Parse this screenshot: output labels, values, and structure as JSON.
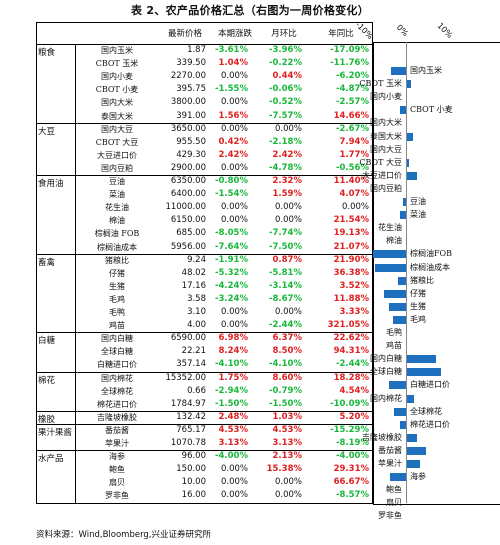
{
  "title": "表 2、农产品价格汇总（右图为一周价格变化）",
  "headers": [
    "最新价格",
    "本期涨跌",
    "月环比",
    "年同比"
  ],
  "chart_axis": [
    "-10%",
    "0%",
    "10%"
  ],
  "colors": {
    "up": "#e02020",
    "down": "#18b83a",
    "bar": "#1f6fbf"
  },
  "groups": [
    {
      "category": "粮食",
      "rows": [
        {
          "name": "国内玉米",
          "price": "1.87",
          "wk": "-3.61%",
          "mom": "-3.96%",
          "yoy": "-17.09%",
          "chart": "国内玉米",
          "v": -3.61
        },
        {
          "name": "CBOT 玉米",
          "price": "339.50",
          "wk": "1.04%",
          "mom": "-0.22%",
          "yoy": "-11.76%",
          "chart": "CBOT 玉米",
          "v": 1.04
        },
        {
          "name": "国内小麦",
          "price": "2270.00",
          "wk": "0.00%",
          "mom": "0.44%",
          "yoy": "-6.20%",
          "chart": "国内小麦",
          "v": 0.0
        },
        {
          "name": "CBOT 小麦",
          "price": "395.75",
          "wk": "-1.55%",
          "mom": "-0.06%",
          "yoy": "-4.87%",
          "chart": "CBOT 小麦",
          "v": -1.55
        },
        {
          "name": "国内大米",
          "price": "3800.00",
          "wk": "0.00%",
          "mom": "-0.52%",
          "yoy": "-2.57%",
          "chart": "国内大米",
          "v": 0.0
        },
        {
          "name": "泰国大米",
          "price": "391.00",
          "wk": "1.56%",
          "mom": "-7.57%",
          "yoy": "14.66%",
          "chart": "泰国大米",
          "v": 1.56
        }
      ]
    },
    {
      "category": "大豆",
      "rows": [
        {
          "name": "国内大豆",
          "price": "3650.00",
          "wk": "0.00%",
          "mom": "0.00%",
          "yoy": "-2.67%",
          "chart": "国内大豆",
          "v": 0.0
        },
        {
          "name": "CBOT 大豆",
          "price": "955.50",
          "wk": "0.42%",
          "mom": "-2.18%",
          "yoy": "7.94%",
          "chart": "CBOT 大豆",
          "v": 0.42
        },
        {
          "name": "大豆进口价",
          "price": "429.30",
          "wk": "2.42%",
          "mom": "2.42%",
          "yoy": "1.77%",
          "chart": "大豆进口价",
          "v": 2.42
        },
        {
          "name": "国内豆粕",
          "price": "2900.00",
          "wk": "0.00%",
          "mom": "-4.78%",
          "yoy": "-0.56%",
          "chart": "国内豆粕",
          "v": 0.0
        }
      ]
    },
    {
      "category": "食用油",
      "rows": [
        {
          "name": "豆油",
          "price": "6350.00",
          "wk": "-0.80%",
          "mom": "2.32%",
          "yoy": "11.40%",
          "chart": "豆油",
          "v": -0.8
        },
        {
          "name": "菜油",
          "price": "6400.00",
          "wk": "-1.54%",
          "mom": "1.59%",
          "yoy": "4.07%",
          "chart": "菜油",
          "v": -1.54
        },
        {
          "name": "花生油",
          "price": "11000.00",
          "wk": "0.00%",
          "mom": "0.00%",
          "yoy": "0.00%",
          "chart": "花生油",
          "v": 0.0
        },
        {
          "name": "棉油",
          "price": "6150.00",
          "wk": "0.00%",
          "mom": "0.00%",
          "yoy": "21.54%",
          "chart": "棉油",
          "v": 0.0
        },
        {
          "name": "棕榈油 FOB",
          "price": "685.00",
          "wk": "-8.05%",
          "mom": "-7.74%",
          "yoy": "19.13%",
          "chart": "棕榈油FOB",
          "v": -8.05
        },
        {
          "name": "棕榈油成本",
          "price": "5956.00",
          "wk": "-7.64%",
          "mom": "-7.50%",
          "yoy": "21.07%",
          "chart": "棕榈油成本",
          "v": -7.64
        }
      ]
    },
    {
      "category": "畜禽",
      "rows": [
        {
          "name": "猪粮比",
          "price": "9.24",
          "wk": "-1.91%",
          "mom": "0.87%",
          "yoy": "21.90%",
          "chart": "猪粮比",
          "v": -1.91
        },
        {
          "name": "仔猪",
          "price": "48.02",
          "wk": "-5.32%",
          "mom": "-5.81%",
          "yoy": "36.38%",
          "chart": "仔猪",
          "v": -5.32
        },
        {
          "name": "生猪",
          "price": "17.16",
          "wk": "-4.24%",
          "mom": "-3.14%",
          "yoy": "3.52%",
          "chart": "生猪",
          "v": -4.24
        },
        {
          "name": "毛鸡",
          "price": "3.58",
          "wk": "-3.24%",
          "mom": "-8.67%",
          "yoy": "11.88%",
          "chart": "毛鸡",
          "v": -3.24
        },
        {
          "name": "毛鸭",
          "price": "3.10",
          "wk": "0.00%",
          "mom": "0.00%",
          "yoy": "3.33%",
          "chart": "毛鸭",
          "v": 0.0
        },
        {
          "name": "鸡苗",
          "price": "4.00",
          "wk": "0.00%",
          "mom": "-2.44%",
          "yoy": "321.05%",
          "chart": "鸡苗",
          "v": 0.0
        }
      ]
    },
    {
      "category": "白糖",
      "rows": [
        {
          "name": "国内白糖",
          "price": "6590.00",
          "wk": "6.98%",
          "mom": "6.37%",
          "yoy": "22.62%",
          "chart": "国内白糖",
          "v": 6.98
        },
        {
          "name": "全球白糖",
          "price": "22.21",
          "wk": "8.24%",
          "mom": "8.50%",
          "yoy": "94.31%",
          "chart": "全球白糖",
          "v": 8.24
        },
        {
          "name": "白糖进口价",
          "price": "357.14",
          "wk": "-4.10%",
          "mom": "-4.10%",
          "yoy": "-2.44%",
          "chart": "白糖进口价",
          "v": -4.1
        }
      ]
    },
    {
      "category": "棉花",
      "rows": [
        {
          "name": "国内棉花",
          "price": "15352.00",
          "wk": "1.75%",
          "mom": "8.60%",
          "yoy": "18.28%",
          "chart": "国内棉花",
          "v": 1.75
        },
        {
          "name": "全球棉花",
          "price": "0.66",
          "wk": "-2.94%",
          "mom": "-0.79%",
          "yoy": "4.54%",
          "chart": "全球棉花",
          "v": -2.94
        },
        {
          "name": "棉花进口价",
          "price": "1784.97",
          "wk": "-1.50%",
          "mom": "-1.50%",
          "yoy": "-10.09%",
          "chart": "棉花进口价",
          "v": -1.5
        }
      ]
    },
    {
      "category": "橡胶",
      "rows": [
        {
          "name": "吉隆坡橡胶",
          "price": "132.42",
          "wk": "2.48%",
          "mom": "1.03%",
          "yoy": "5.20%",
          "chart": "吉隆坡橡胶",
          "v": 2.48
        }
      ]
    },
    {
      "category": "果汁果酱",
      "rows": [
        {
          "name": "番茄酱",
          "price": "765.17",
          "wk": "4.53%",
          "mom": "4.53%",
          "yoy": "-15.29%",
          "chart": "番茄酱",
          "v": 4.53
        },
        {
          "name": "苹果汁",
          "price": "1070.78",
          "wk": "3.13%",
          "mom": "3.13%",
          "yoy": "-8.19%",
          "chart": "苹果汁",
          "v": 3.13
        }
      ]
    },
    {
      "category": "水产品",
      "rows": [
        {
          "name": "海参",
          "price": "96.00",
          "wk": "-4.00%",
          "mom": "2.13%",
          "yoy": "-4.00%",
          "chart": "海参",
          "v": -4.0
        },
        {
          "name": "鲍鱼",
          "price": "150.00",
          "wk": "0.00%",
          "mom": "15.38%",
          "yoy": "29.31%",
          "chart": "鲍鱼",
          "v": 0.0
        },
        {
          "name": "扇贝",
          "price": "10.00",
          "wk": "0.00%",
          "mom": "0.00%",
          "yoy": "66.67%",
          "chart": "扇贝",
          "v": 0.0
        },
        {
          "name": "罗非鱼",
          "price": "16.00",
          "wk": "0.00%",
          "mom": "0.00%",
          "yoy": "-8.57%",
          "chart": "罗非鱼",
          "v": 0.0
        }
      ]
    }
  ],
  "source": "资料来源：Wind,Bloomberg,兴业证券研究所"
}
